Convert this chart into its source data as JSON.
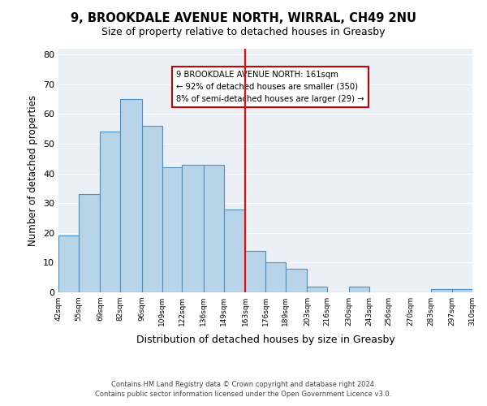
{
  "title": "9, BROOKDALE AVENUE NORTH, WIRRAL, CH49 2NU",
  "subtitle": "Size of property relative to detached houses in Greasby",
  "xlabel": "Distribution of detached houses by size in Greasby",
  "ylabel": "Number of detached properties",
  "bar_edges": [
    42,
    55,
    69,
    82,
    96,
    109,
    122,
    136,
    149,
    163,
    176,
    189,
    203,
    216,
    230,
    243,
    256,
    270,
    283,
    297,
    310
  ],
  "bar_heights": [
    19,
    33,
    54,
    65,
    56,
    42,
    43,
    43,
    28,
    14,
    10,
    8,
    2,
    0,
    2,
    0,
    0,
    0,
    1,
    1
  ],
  "bar_color": "#b8d4e8",
  "bar_edge_color": "#4a90c4",
  "highlight_x": 163,
  "ylim": [
    0,
    82
  ],
  "xlim": [
    42,
    310
  ],
  "annotation_title": "9 BROOKDALE AVENUE NORTH: 161sqm",
  "annotation_line1": "← 92% of detached houses are smaller (350)",
  "annotation_line2": "8% of semi-detached houses are larger (29) →",
  "bg_color": "#eaf0f6",
  "footer_line1": "Contains HM Land Registry data © Crown copyright and database right 2024.",
  "footer_line2": "Contains public sector information licensed under the Open Government Licence v3.0.",
  "tick_labels": [
    "42sqm",
    "55sqm",
    "69sqm",
    "82sqm",
    "96sqm",
    "109sqm",
    "122sqm",
    "136sqm",
    "149sqm",
    "163sqm",
    "176sqm",
    "189sqm",
    "203sqm",
    "216sqm",
    "230sqm",
    "243sqm",
    "256sqm",
    "270sqm",
    "283sqm",
    "297sqm",
    "310sqm"
  ]
}
